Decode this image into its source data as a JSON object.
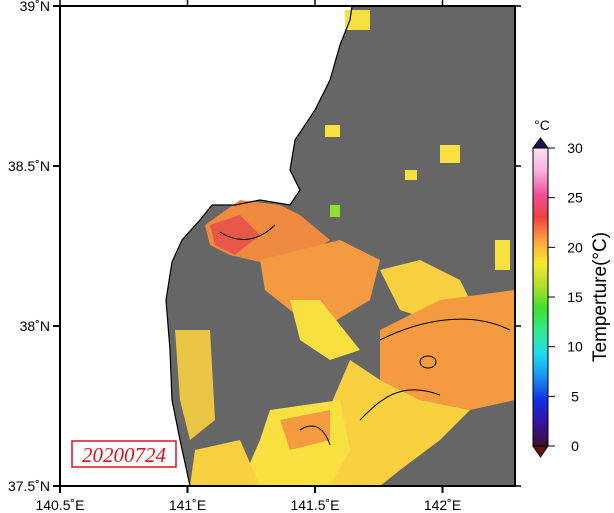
{
  "map": {
    "date_label": "20200724",
    "lat_ticks": [
      {
        "value": 39.0,
        "label": "39˚N"
      },
      {
        "value": 38.5,
        "label": "38.5˚N"
      },
      {
        "value": 38.0,
        "label": "38˚N"
      },
      {
        "value": 37.5,
        "label": "37.5˚N"
      }
    ],
    "lon_ticks": [
      {
        "value": 140.5,
        "label": "140.5˚E"
      },
      {
        "value": 141.0,
        "label": "141˚E"
      },
      {
        "value": 141.5,
        "label": "141.5˚E"
      },
      {
        "value": 142.0,
        "label": "142˚E"
      }
    ],
    "land_color": "#ffffff",
    "no_data_color": "#666666"
  },
  "colorbar": {
    "unit": "°C",
    "label": "Temperture(°C)",
    "range": [
      0,
      30
    ],
    "ticks": [
      {
        "value": 0,
        "label": "0"
      },
      {
        "value": 5,
        "label": "5"
      },
      {
        "value": 10,
        "label": "10"
      },
      {
        "value": 15,
        "label": "15"
      },
      {
        "value": 20,
        "label": "20"
      },
      {
        "value": 25,
        "label": "25"
      },
      {
        "value": 30,
        "label": "30"
      }
    ],
    "colors": [
      "#3a1030",
      "#3a10a0",
      "#1030e0",
      "#1890f0",
      "#20d8f0",
      "#30e890",
      "#40e030",
      "#b0e030",
      "#f8e830",
      "#f8a040",
      "#f04040",
      "#f050a0",
      "#f8b0e0",
      "#fce0f0"
    ]
  }
}
